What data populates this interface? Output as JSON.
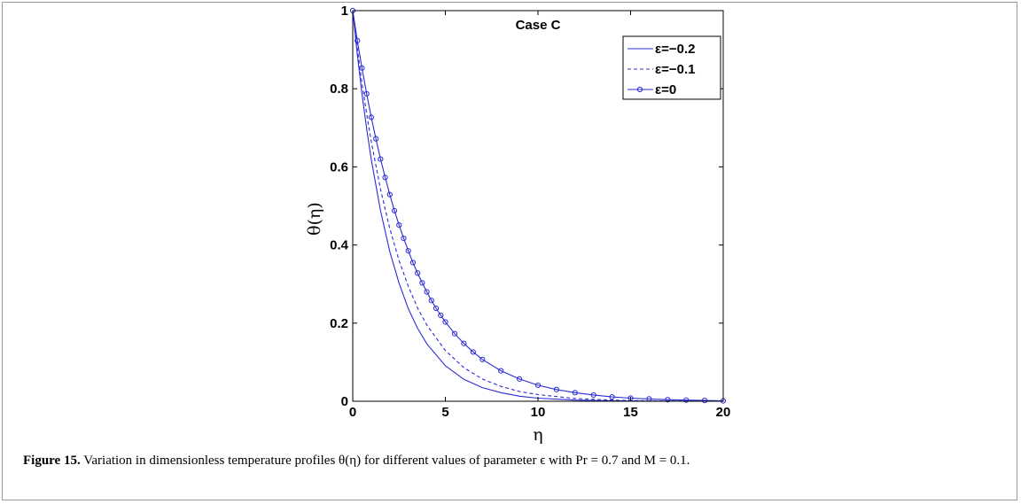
{
  "caption": {
    "label": "Figure 15.",
    "text": "Variation in dimensionless temperature profiles θ(η) for different values of parameter ϵ with Pr = 0.7 and M = 0.1."
  },
  "chart_data": {
    "type": "line",
    "title": "Case C",
    "xlabel": "η",
    "ylabel": "θ(η)",
    "xlim": [
      0,
      20
    ],
    "ylim": [
      0,
      1
    ],
    "xticks": [
      "0",
      "5",
      "10",
      "15",
      "20"
    ],
    "yticks": [
      "0",
      "0.2",
      "0.4",
      "0.6",
      "0.8",
      "1"
    ],
    "grid": false,
    "legend_position": "top-right",
    "colors": {
      "series": "#2b2bd6",
      "axis": "#000000"
    },
    "series": [
      {
        "name": "ε=−0.2",
        "style": "solid",
        "x": [
          0,
          0.25,
          0.5,
          0.75,
          1,
          1.5,
          2,
          2.5,
          3,
          3.5,
          4,
          5,
          6,
          7,
          8,
          9,
          10,
          12,
          14,
          16,
          18,
          20
        ],
        "y": [
          1.0,
          0.887,
          0.787,
          0.698,
          0.619,
          0.487,
          0.383,
          0.302,
          0.237,
          0.187,
          0.147,
          0.091,
          0.056,
          0.035,
          0.022,
          0.013,
          0.008,
          0.003,
          0.001,
          0.0005,
          0.0002,
          0.0
        ]
      },
      {
        "name": "ε=−0.1",
        "style": "dashed",
        "x": [
          0,
          0.25,
          0.5,
          0.75,
          1,
          1.5,
          2,
          2.5,
          3,
          3.5,
          4,
          5,
          6,
          7,
          8,
          9,
          10,
          12,
          14,
          16,
          18,
          20
        ],
        "y": [
          1.0,
          0.903,
          0.815,
          0.736,
          0.665,
          0.542,
          0.442,
          0.36,
          0.294,
          0.239,
          0.195,
          0.13,
          0.086,
          0.057,
          0.038,
          0.025,
          0.017,
          0.007,
          0.003,
          0.001,
          0.0005,
          0.0
        ]
      },
      {
        "name": "ε=0",
        "style": "solid-circle",
        "x": [
          0,
          0.25,
          0.5,
          0.75,
          1,
          1.25,
          1.5,
          1.75,
          2,
          2.25,
          2.5,
          2.75,
          3,
          3.25,
          3.5,
          3.75,
          4,
          4.25,
          4.5,
          4.75,
          5,
          5.5,
          6,
          6.5,
          7,
          8,
          9,
          10,
          11,
          12,
          13,
          14,
          15,
          16,
          17,
          18,
          19,
          20
        ],
        "y": [
          1.0,
          0.923,
          0.853,
          0.787,
          0.727,
          0.672,
          0.62,
          0.573,
          0.529,
          0.488,
          0.451,
          0.417,
          0.385,
          0.355,
          0.328,
          0.303,
          0.28,
          0.258,
          0.238,
          0.22,
          0.203,
          0.173,
          0.148,
          0.126,
          0.107,
          0.078,
          0.057,
          0.041,
          0.03,
          0.022,
          0.016,
          0.011,
          0.008,
          0.006,
          0.004,
          0.003,
          0.002,
          0.001
        ]
      }
    ]
  }
}
